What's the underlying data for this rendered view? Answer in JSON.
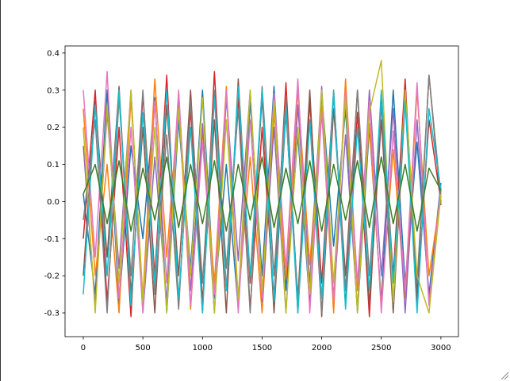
{
  "chart_data": {
    "type": "line",
    "x": [
      0,
      100,
      200,
      300,
      400,
      500,
      600,
      700,
      800,
      900,
      1000,
      1100,
      1200,
      1300,
      1400,
      1500,
      1600,
      1700,
      1800,
      1900,
      2000,
      2100,
      2200,
      2300,
      2400,
      2500,
      2600,
      2700,
      2800,
      2900,
      3000
    ],
    "series": [
      {
        "color": "#1f77b4",
        "values": [
          0.02,
          -0.25,
          0.3,
          -0.28,
          0.15,
          -0.1,
          0.28,
          -0.3,
          0.22,
          -0.18,
          0.3,
          -0.26,
          0.1,
          -0.29,
          0.27,
          -0.2,
          0.31,
          -0.24,
          0.18,
          -0.28,
          0.29,
          -0.12,
          0.25,
          -0.3,
          0.2,
          -0.27,
          0.3,
          -0.22,
          0.16,
          -0.25,
          0.05
        ]
      },
      {
        "color": "#ff7f0e",
        "values": [
          0.25,
          -0.2,
          0.1,
          -0.3,
          0.28,
          -0.26,
          0.33,
          -0.15,
          0.27,
          -0.29,
          0.19,
          -0.22,
          0.31,
          -0.27,
          0.12,
          -0.3,
          0.24,
          -0.21,
          0.3,
          -0.17,
          0.26,
          -0.3,
          0.33,
          -0.24,
          0.21,
          -0.28,
          0.14,
          -0.26,
          0.3,
          -0.2,
          0.02
        ]
      },
      {
        "color": "#d62728",
        "values": [
          -0.1,
          0.3,
          -0.27,
          0.2,
          -0.31,
          0.29,
          -0.2,
          0.34,
          -0.28,
          0.25,
          -0.3,
          0.35,
          -0.24,
          0.28,
          -0.29,
          0.2,
          -0.26,
          0.32,
          -0.3,
          0.27,
          -0.22,
          0.3,
          -0.28,
          0.24,
          -0.31,
          0.29,
          -0.2,
          0.33,
          -0.27,
          0.22,
          0.0
        ]
      },
      {
        "color": "#9467bd",
        "values": [
          0.15,
          -0.28,
          0.24,
          -0.18,
          0.3,
          -0.3,
          0.12,
          -0.27,
          0.29,
          -0.24,
          0.21,
          -0.3,
          0.28,
          -0.16,
          0.3,
          -0.27,
          0.2,
          -0.3,
          0.26,
          -0.22,
          0.31,
          -0.26,
          0.18,
          -0.29,
          0.3,
          -0.2,
          0.25,
          -0.3,
          0.22,
          -0.27,
          0.03
        ]
      },
      {
        "color": "#8c564b",
        "values": [
          -0.2,
          0.27,
          -0.15,
          0.31,
          -0.25,
          0.2,
          -0.3,
          0.26,
          -0.2,
          0.3,
          -0.27,
          0.22,
          -0.3,
          0.33,
          -0.22,
          0.28,
          -0.3,
          0.24,
          -0.26,
          0.3,
          -0.31,
          0.25,
          -0.2,
          0.3,
          -0.28,
          0.22,
          -0.3,
          0.27,
          -0.24,
          0.34,
          -0.01
        ]
      },
      {
        "color": "#e377c2",
        "values": [
          0.3,
          -0.15,
          0.35,
          -0.26,
          0.2,
          -0.3,
          0.27,
          -0.22,
          0.3,
          -0.28,
          0.16,
          -0.25,
          0.3,
          -0.3,
          0.22,
          -0.26,
          0.29,
          -0.18,
          0.33,
          -0.3,
          0.24,
          -0.27,
          0.3,
          -0.22,
          0.27,
          -0.3,
          0.19,
          -0.24,
          0.32,
          -0.28,
          0.04
        ]
      },
      {
        "color": "#7f7f7f",
        "values": [
          -0.05,
          0.22,
          -0.3,
          0.28,
          -0.2,
          0.3,
          -0.25,
          0.18,
          -0.29,
          0.27,
          -0.22,
          0.3,
          -0.18,
          0.25,
          -0.3,
          0.31,
          -0.2,
          0.28,
          -0.27,
          0.22,
          -0.3,
          0.29,
          -0.24,
          0.3,
          -0.2,
          0.26,
          -0.28,
          0.3,
          -0.22,
          0.34,
          0.01
        ]
      },
      {
        "color": "#bcbd22",
        "values": [
          0.2,
          -0.3,
          0.26,
          -0.22,
          0.3,
          -0.27,
          0.2,
          -0.3,
          0.25,
          -0.2,
          0.28,
          -0.3,
          0.22,
          -0.26,
          0.3,
          -0.24,
          0.27,
          -0.3,
          0.2,
          -0.25,
          0.3,
          -0.22,
          0.28,
          -0.3,
          0.24,
          0.38,
          -0.27,
          0.3,
          -0.2,
          -0.3,
          0.02
        ]
      },
      {
        "color": "#17becf",
        "values": [
          -0.25,
          0.26,
          -0.2,
          0.3,
          -0.28,
          0.24,
          -0.22,
          0.3,
          -0.26,
          0.2,
          -0.3,
          0.28,
          -0.24,
          0.31,
          -0.2,
          0.3,
          -0.27,
          0.25,
          -0.3,
          0.22,
          -0.26,
          0.3,
          -0.29,
          0.2,
          -0.24,
          0.3,
          -0.22,
          0.27,
          -0.3,
          0.25,
          0.03
        ]
      },
      {
        "color": "#3a7f25",
        "values": [
          0.02,
          0.1,
          -0.06,
          0.11,
          -0.08,
          0.09,
          -0.05,
          0.12,
          -0.07,
          0.1,
          -0.06,
          0.11,
          -0.08,
          0.1,
          -0.05,
          0.12,
          -0.07,
          0.09,
          -0.06,
          0.11,
          -0.08,
          0.1,
          -0.05,
          0.11,
          -0.07,
          0.12,
          -0.06,
          0.1,
          -0.08,
          0.09,
          0.03
        ]
      }
    ],
    "xlim": [
      -153,
      3147
    ],
    "ylim": [
      -0.364,
      0.419
    ],
    "xticks": [
      0,
      500,
      1000,
      1500,
      2000,
      2500,
      3000
    ],
    "yticks": [
      -0.3,
      -0.2,
      -0.1,
      {
        "value": 0,
        "label": "0.0"
      },
      0.1,
      0.2,
      0.3,
      0.4
    ]
  }
}
